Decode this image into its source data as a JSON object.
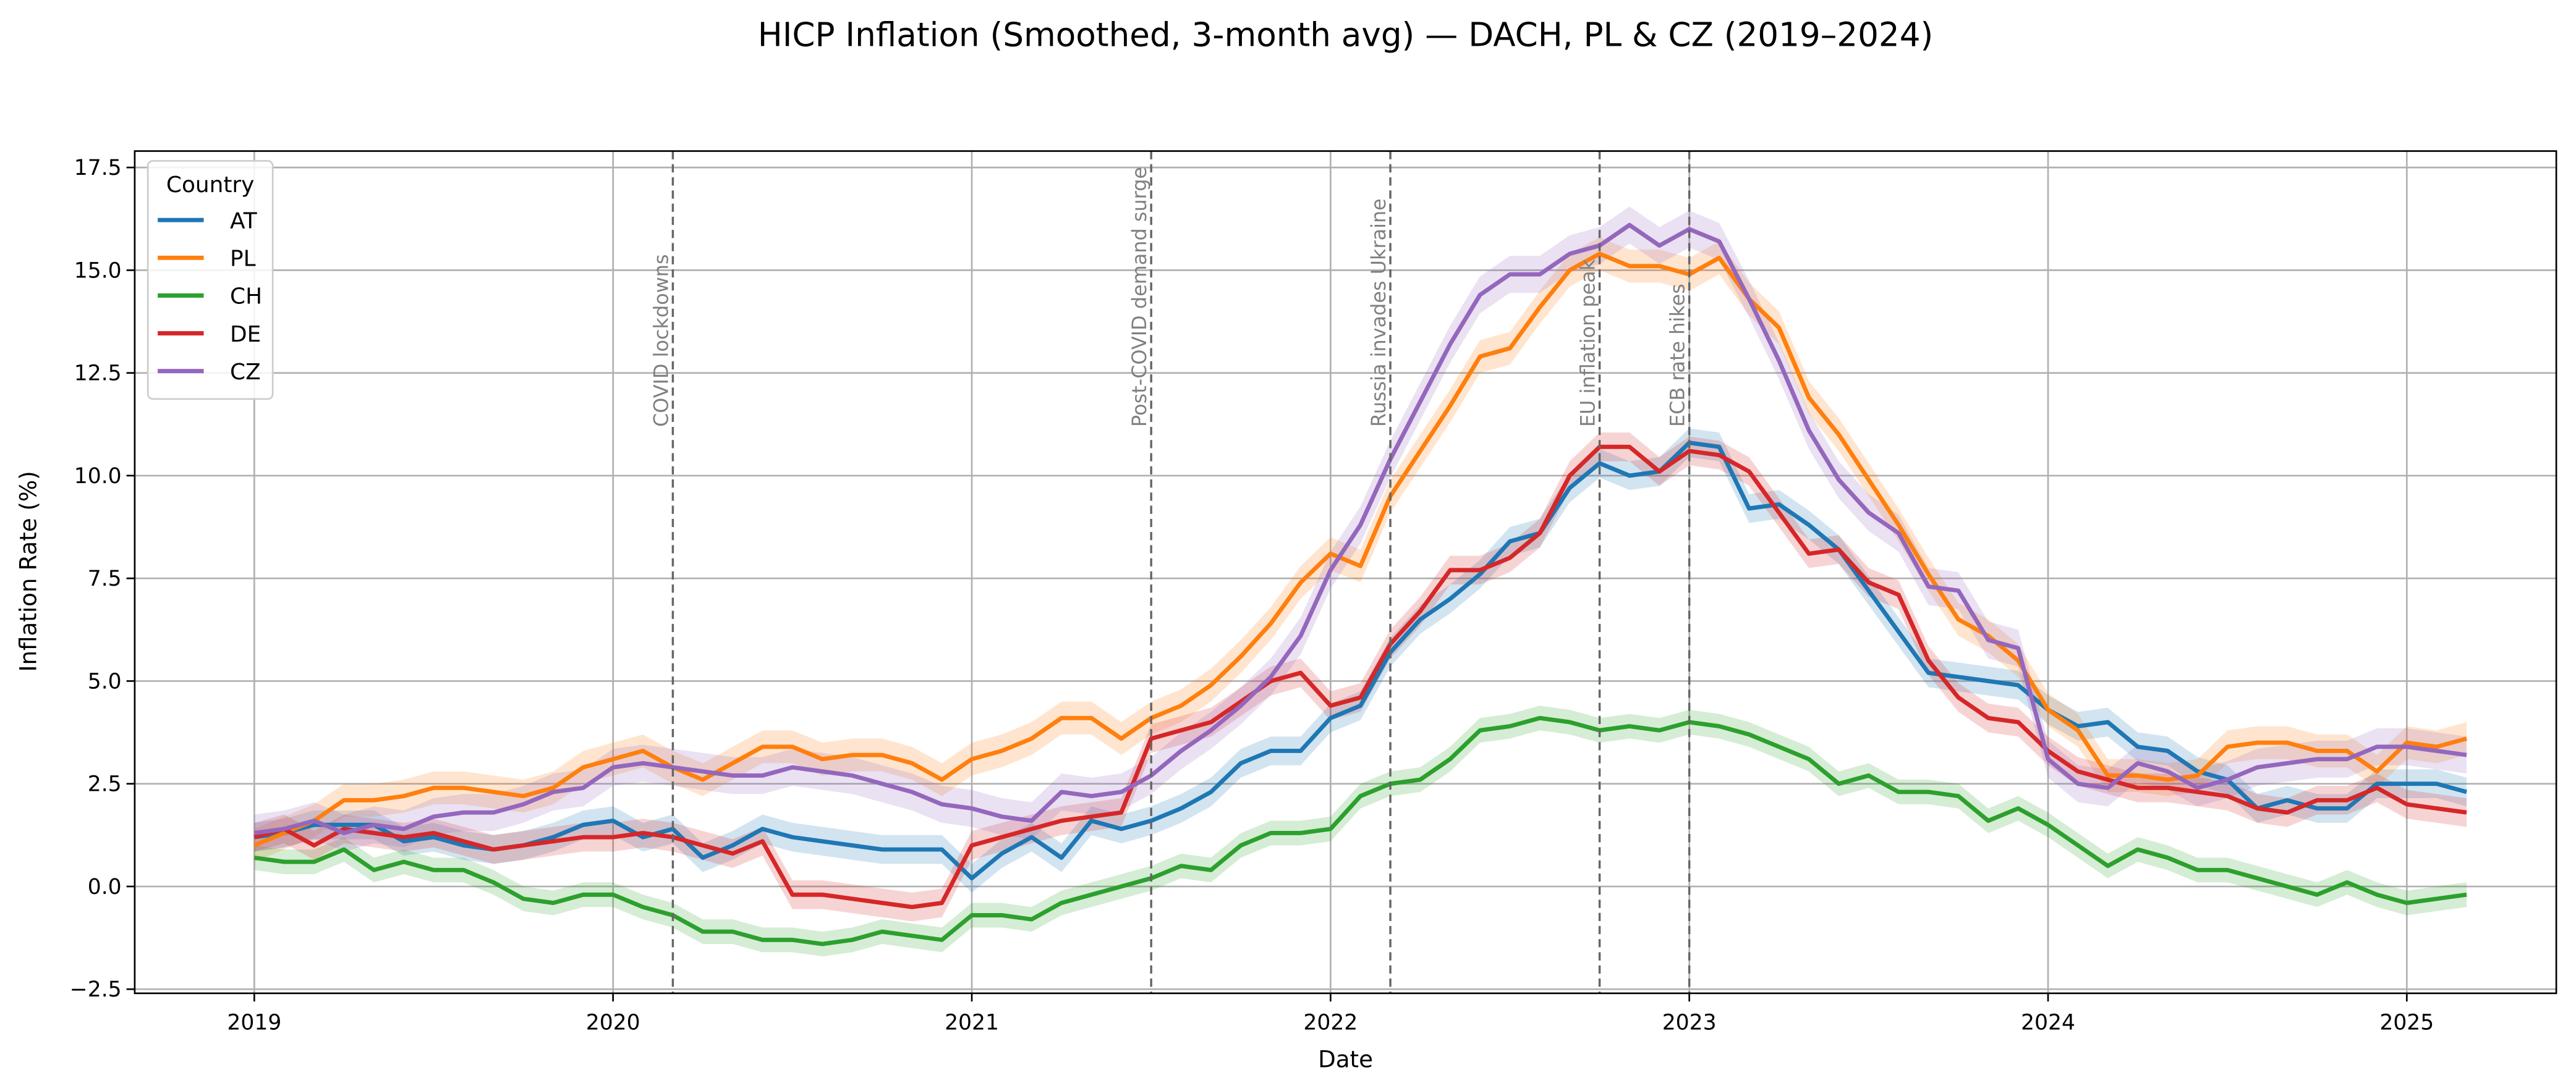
{
  "chart_data": {
    "type": "line",
    "title": "HICP Inflation (Smoothed, 3-month avg) — DACH, PL & CZ (2019–2024)",
    "x_label": "Date",
    "y_label": "Inflation Rate (%)",
    "legend_title": "Country",
    "legend": "upper left",
    "grid": true,
    "x": [
      "2019-01",
      "2019-02",
      "2019-03",
      "2019-04",
      "2019-05",
      "2019-06",
      "2019-07",
      "2019-08",
      "2019-09",
      "2019-10",
      "2019-11",
      "2019-12",
      "2020-01",
      "2020-02",
      "2020-03",
      "2020-04",
      "2020-05",
      "2020-06",
      "2020-07",
      "2020-08",
      "2020-09",
      "2020-10",
      "2020-11",
      "2020-12",
      "2021-01",
      "2021-02",
      "2021-03",
      "2021-04",
      "2021-05",
      "2021-06",
      "2021-07",
      "2021-08",
      "2021-09",
      "2021-10",
      "2021-11",
      "2021-12",
      "2022-01",
      "2022-02",
      "2022-03",
      "2022-04",
      "2022-05",
      "2022-06",
      "2022-07",
      "2022-08",
      "2022-09",
      "2022-10",
      "2022-11",
      "2022-12",
      "2023-01",
      "2023-02",
      "2023-03",
      "2023-04",
      "2023-05",
      "2023-06",
      "2023-07",
      "2023-08",
      "2023-09",
      "2023-10",
      "2023-11",
      "2023-12",
      "2024-01",
      "2024-02",
      "2024-03",
      "2024-04",
      "2024-05",
      "2024-06",
      "2024-07",
      "2024-08",
      "2024-09",
      "2024-10",
      "2024-11",
      "2024-12",
      "2025-01",
      "2025-02",
      "2025-03"
    ],
    "xlim": [
      "2018-09",
      "2025-06"
    ],
    "xticks": [
      "2019",
      "2020",
      "2021",
      "2022",
      "2023",
      "2024",
      "2025"
    ],
    "ylim": [
      -2.6,
      17.9
    ],
    "yticks": [
      {
        "value": -2.5,
        "label": "−2.5"
      },
      {
        "value": 0,
        "label": "0.0"
      },
      2.5,
      {
        "value": 5,
        "label": "5.0"
      },
      7.5,
      {
        "value": 10,
        "label": "10.0"
      },
      12.5,
      {
        "value": 15,
        "label": "15.0"
      },
      17.5
    ],
    "series": [
      {
        "name": "AT",
        "color": "#1f77b4",
        "ci": 0.35,
        "values": [
          1.2,
          1.3,
          1.5,
          1.5,
          1.5,
          1.1,
          1.2,
          1.0,
          0.9,
          1.0,
          1.2,
          1.5,
          1.6,
          1.2,
          1.4,
          0.7,
          1.0,
          1.4,
          1.2,
          1.1,
          1.0,
          0.9,
          0.9,
          0.9,
          0.2,
          0.8,
          1.2,
          0.7,
          1.6,
          1.4,
          1.6,
          1.9,
          2.3,
          3.0,
          3.3,
          3.3,
          4.1,
          4.4,
          5.7,
          6.5,
          7.0,
          7.6,
          8.4,
          8.6,
          9.7,
          10.3,
          10.0,
          10.1,
          10.8,
          10.7,
          9.2,
          9.3,
          8.8,
          8.2,
          7.2,
          6.2,
          5.2,
          5.1,
          5.0,
          4.9,
          4.3,
          3.9,
          4.0,
          3.4,
          3.3,
          2.8,
          2.6,
          1.9,
          2.1,
          1.9,
          1.9,
          2.5,
          2.5,
          2.5,
          2.3
        ]
      },
      {
        "name": "PL",
        "color": "#ff7f0e",
        "ci": 0.4,
        "values": [
          1.0,
          1.3,
          1.6,
          2.1,
          2.1,
          2.2,
          2.4,
          2.4,
          2.3,
          2.2,
          2.4,
          2.9,
          3.1,
          3.3,
          2.9,
          2.6,
          3.0,
          3.4,
          3.4,
          3.1,
          3.2,
          3.2,
          3.0,
          2.6,
          3.1,
          3.3,
          3.6,
          4.1,
          4.1,
          3.6,
          4.1,
          4.4,
          4.9,
          5.6,
          6.4,
          7.4,
          8.1,
          7.8,
          9.5,
          10.6,
          11.7,
          12.9,
          13.1,
          14.1,
          15.0,
          15.4,
          15.1,
          15.1,
          14.9,
          15.3,
          14.3,
          13.6,
          11.9,
          11.0,
          9.9,
          8.8,
          7.6,
          6.5,
          6.1,
          5.5,
          4.3,
          3.8,
          2.7,
          2.7,
          2.6,
          2.7,
          3.4,
          3.5,
          3.5,
          3.3,
          3.3,
          2.8,
          3.5,
          3.4,
          3.6
        ]
      },
      {
        "name": "CH",
        "color": "#2ca02c",
        "ci": 0.3,
        "values": [
          0.7,
          0.6,
          0.6,
          0.9,
          0.4,
          0.6,
          0.4,
          0.4,
          0.1,
          -0.3,
          -0.4,
          -0.2,
          -0.2,
          -0.5,
          -0.7,
          -1.1,
          -1.1,
          -1.3,
          -1.3,
          -1.4,
          -1.3,
          -1.1,
          -1.2,
          -1.3,
          -0.7,
          -0.7,
          -0.8,
          -0.4,
          -0.2,
          0.0,
          0.2,
          0.5,
          0.4,
          1.0,
          1.3,
          1.3,
          1.4,
          2.2,
          2.5,
          2.6,
          3.1,
          3.8,
          3.9,
          4.1,
          4.0,
          3.8,
          3.9,
          3.8,
          4.0,
          3.9,
          3.7,
          3.4,
          3.1,
          2.5,
          2.7,
          2.3,
          2.3,
          2.2,
          1.6,
          1.9,
          1.5,
          1.0,
          0.5,
          0.9,
          0.7,
          0.4,
          0.4,
          0.2,
          0.0,
          -0.2,
          0.1,
          -0.2,
          -0.4,
          -0.3,
          -0.2
        ]
      },
      {
        "name": "DE",
        "color": "#d62728",
        "ci": 0.35,
        "values": [
          1.2,
          1.4,
          1.0,
          1.4,
          1.3,
          1.2,
          1.3,
          1.1,
          0.9,
          1.0,
          1.1,
          1.2,
          1.2,
          1.3,
          1.2,
          1.0,
          0.8,
          1.1,
          -0.2,
          -0.2,
          -0.3,
          -0.4,
          -0.5,
          -0.4,
          1.0,
          1.2,
          1.4,
          1.6,
          1.7,
          1.8,
          3.6,
          3.8,
          4.0,
          4.5,
          5.0,
          5.2,
          4.4,
          4.6,
          5.9,
          6.7,
          7.7,
          7.7,
          8.0,
          8.6,
          10.0,
          10.7,
          10.7,
          10.1,
          10.6,
          10.5,
          10.1,
          9.1,
          8.1,
          8.2,
          7.4,
          7.1,
          5.5,
          4.6,
          4.1,
          4.0,
          3.3,
          2.8,
          2.6,
          2.4,
          2.4,
          2.3,
          2.2,
          1.9,
          1.8,
          2.1,
          2.1,
          2.4,
          2.0,
          1.9,
          1.8
        ]
      },
      {
        "name": "CZ",
        "color": "#9467bd",
        "ci": 0.45,
        "values": [
          1.3,
          1.4,
          1.6,
          1.3,
          1.5,
          1.4,
          1.7,
          1.8,
          1.8,
          2.0,
          2.3,
          2.4,
          2.9,
          3.0,
          2.9,
          2.8,
          2.7,
          2.7,
          2.9,
          2.8,
          2.7,
          2.5,
          2.3,
          2.0,
          1.9,
          1.7,
          1.6,
          2.3,
          2.2,
          2.3,
          2.7,
          3.3,
          3.8,
          4.4,
          5.1,
          6.1,
          7.7,
          8.8,
          10.4,
          11.8,
          13.2,
          14.4,
          14.9,
          14.9,
          15.4,
          15.6,
          16.1,
          15.6,
          16.0,
          15.7,
          14.3,
          12.8,
          11.1,
          9.9,
          9.1,
          8.6,
          7.3,
          7.2,
          6.0,
          5.8,
          3.1,
          2.5,
          2.4,
          3.0,
          2.8,
          2.4,
          2.6,
          2.9,
          3.0,
          3.1,
          3.1,
          3.4,
          3.4,
          3.3,
          3.2
        ]
      }
    ],
    "annotations": [
      {
        "x": "2020-03",
        "label": "COVID lockdowns"
      },
      {
        "x": "2021-07",
        "label": "Post-COVID demand surge"
      },
      {
        "x": "2022-03",
        "label": "Russia invades Ukraine"
      },
      {
        "x": "2022-10",
        "label": "EU inflation peak"
      },
      {
        "x": "2023-01",
        "label": "ECB rate hikes"
      }
    ]
  }
}
